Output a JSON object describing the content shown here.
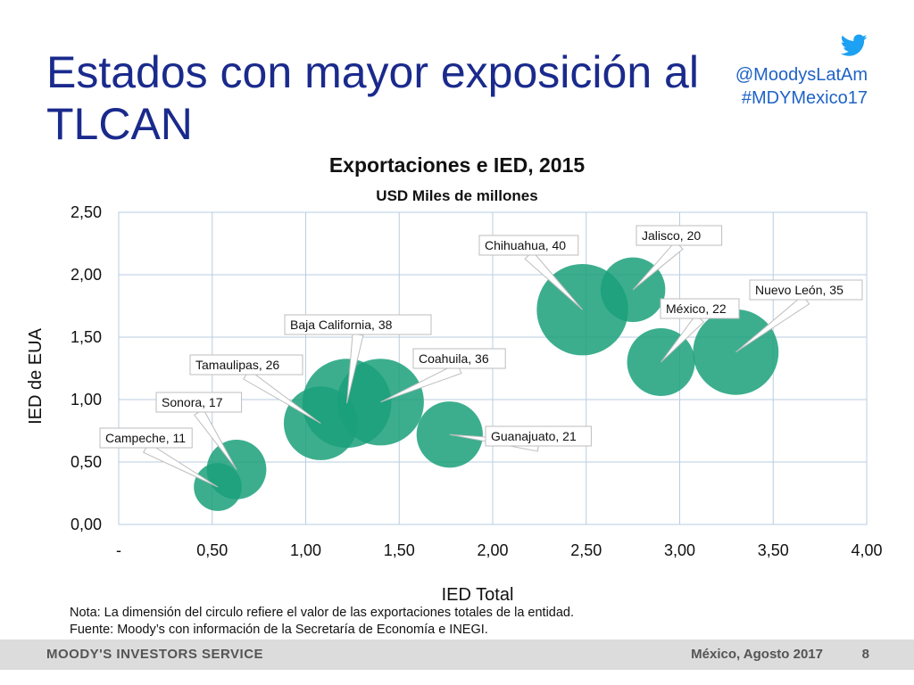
{
  "slide": {
    "title_line1": "Estados con mayor exposición al",
    "title_line2": "TLCAN"
  },
  "social": {
    "icon": "twitter-bird-icon",
    "handle": "@MoodysLatAm",
    "hashtag": "#MDYMexico17"
  },
  "chart_data": {
    "type": "bubble",
    "title": "Exportaciones e IED, 2015",
    "subtitle": "USD Miles de millones",
    "xlabel": "IED Total",
    "ylabel": "IED de EUA",
    "xlim": [
      0,
      4
    ],
    "ylim": [
      0,
      2.5
    ],
    "x_ticks": [
      "-",
      "0,50",
      "1,00",
      "1,50",
      "2,00",
      "2,50",
      "3,00",
      "3,50",
      "4,00"
    ],
    "y_ticks": [
      "0,00",
      "0,50",
      "1,00",
      "1,50",
      "2,00",
      "2,50"
    ],
    "grid": true,
    "bubble_color": "#1aa07a",
    "points": [
      {
        "label": "Campeche, 11",
        "x": 0.53,
        "y": 0.3,
        "size": 11
      },
      {
        "label": "Sonora,  17",
        "x": 0.63,
        "y": 0.44,
        "size": 17
      },
      {
        "label": "Tamaulipas,  26",
        "x": 1.08,
        "y": 0.81,
        "size": 26
      },
      {
        "label": "Baja California,  38",
        "x": 1.22,
        "y": 0.97,
        "size": 38
      },
      {
        "label": "Coahuila, 36",
        "x": 1.4,
        "y": 0.98,
        "size": 36
      },
      {
        "label": "Guanajuato, 21",
        "x": 1.77,
        "y": 0.72,
        "size": 21
      },
      {
        "label": "Chihuahua, 40",
        "x": 2.48,
        "y": 1.72,
        "size": 40
      },
      {
        "label": "Jalisco, 20",
        "x": 2.75,
        "y": 1.88,
        "size": 20
      },
      {
        "label": "México, 22",
        "x": 2.9,
        "y": 1.3,
        "size": 22
      },
      {
        "label": "Nuevo León,  35",
        "x": 3.3,
        "y": 1.38,
        "size": 35
      }
    ]
  },
  "notes": {
    "nota": "Nota: La dimensión del circulo refiere el valor de las exportaciones totales de la entidad.",
    "fuente": "Fuente: Moody’s con información de la Secretaría de Economía e INEGI."
  },
  "footer": {
    "brand": "MOODY'S INVESTORS SERVICE",
    "date": "México, Agosto 2017",
    "page": "8"
  }
}
